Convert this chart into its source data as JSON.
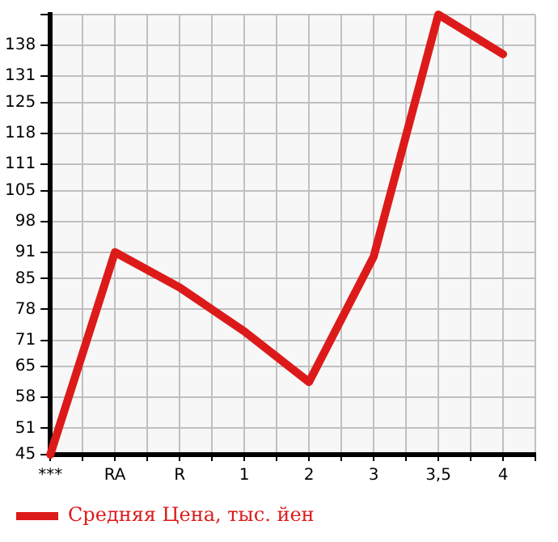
{
  "chart_data": {
    "type": "line",
    "categories": [
      "***",
      "RA",
      "R",
      "1",
      "2",
      "3",
      "3,5",
      "4"
    ],
    "series": [
      {
        "name": "Средняя Цена, тыс. йен",
        "color": "#dd1a1a",
        "values": [
          45,
          91,
          83,
          73,
          61.5,
          90,
          145,
          136
        ]
      }
    ],
    "ylim": [
      45,
      145
    ],
    "yticks": [
      45,
      51,
      58,
      65,
      71,
      78,
      85,
      91,
      98,
      105,
      111,
      118,
      125,
      131,
      138,
      {
        "value": 145,
        "label": null
      }
    ],
    "grid": true,
    "legend": "bottom",
    "marker": "none",
    "line_style": "solid"
  }
}
